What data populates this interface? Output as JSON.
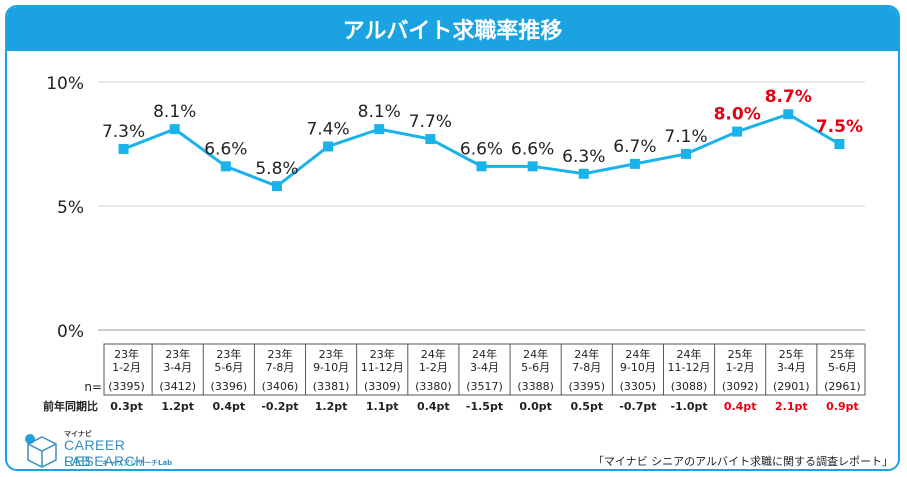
{
  "title": "アルバイト求職率推移",
  "source": "「マイナビ シニアのアルバイト求職に関する調査レポート」",
  "logo": {
    "brand": "マイナビ",
    "main": "CAREER RESEARCH",
    "sub": "LAB",
    "sub2": "キャリアリサーチLab"
  },
  "colors": {
    "accent": "#1aa3e0",
    "line": "#1ab2ea",
    "highlight": "#e60012"
  },
  "chart_data": {
    "type": "line",
    "y_tick_labels": [
      "10%",
      "5%",
      "0%"
    ],
    "ylim": [
      0,
      10
    ],
    "years": [
      "23年",
      "23年",
      "23年",
      "23年",
      "23年",
      "23年",
      "24年",
      "24年",
      "24年",
      "24年",
      "24年",
      "24年",
      "25年",
      "25年",
      "25年"
    ],
    "periods": [
      "1-2月",
      "3-4月",
      "5-6月",
      "7-8月",
      "9-10月",
      "11-12月",
      "1-2月",
      "3-4月",
      "5-6月",
      "7-8月",
      "9-10月",
      "11-12月",
      "1-2月",
      "3-4月",
      "5-6月"
    ],
    "values": [
      7.3,
      8.1,
      6.6,
      5.8,
      7.4,
      8.1,
      7.7,
      6.6,
      6.6,
      6.3,
      6.7,
      7.1,
      8.0,
      8.7,
      7.5
    ],
    "value_labels": [
      "7.3%",
      "8.1%",
      "6.6%",
      "5.8%",
      "7.4%",
      "8.1%",
      "7.7%",
      "6.6%",
      "6.6%",
      "6.3%",
      "6.7%",
      "7.1%",
      "8.0%",
      "8.7%",
      "7.5%"
    ],
    "highlighted": [
      false,
      false,
      false,
      false,
      false,
      false,
      false,
      false,
      false,
      false,
      false,
      false,
      true,
      true,
      true
    ],
    "n_label": "n=",
    "n_values": [
      "(3395)",
      "(3412)",
      "(3396)",
      "(3406)",
      "(3381)",
      "(3309)",
      "(3380)",
      "(3517)",
      "(3388)",
      "(3395)",
      "(3305)",
      "(3088)",
      "(3092)",
      "(2901)",
      "(2961)"
    ],
    "yoy_label": "前年同期比",
    "yoy_values": [
      "0.3pt",
      "1.2pt",
      "0.4pt",
      "-0.2pt",
      "1.2pt",
      "1.1pt",
      "0.4pt",
      "-1.5pt",
      "0.0pt",
      "0.5pt",
      "-0.7pt",
      "-1.0pt",
      "0.4pt",
      "2.1pt",
      "0.9pt"
    ]
  }
}
